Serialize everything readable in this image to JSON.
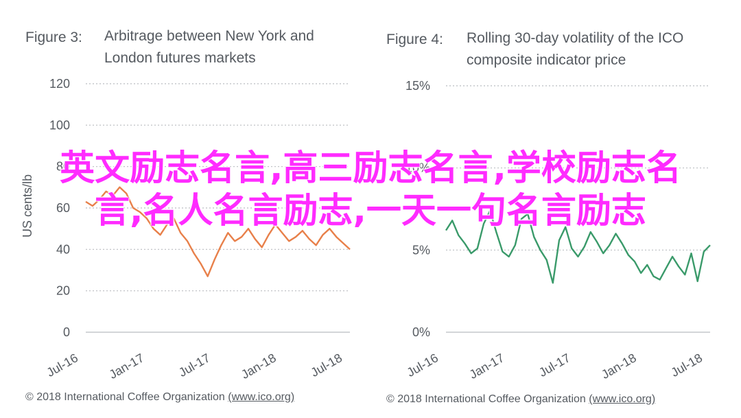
{
  "overlay_text": "英文励志名言,高三励志名言,学校励志名言,名人名言励志,一天一句名言励志",
  "chart_data": [
    {
      "type": "line",
      "figure_label": "Figure 3:",
      "title": "Arbitrage between New York and London futures markets",
      "ylabel": "US cents/lb",
      "ylim": [
        0,
        120
      ],
      "yticks": [
        "0",
        "20",
        "40",
        "60",
        "80",
        "100",
        "120"
      ],
      "xticks": [
        "Jul-16",
        "Jan-17",
        "Jul-17",
        "Jan-18",
        "Jul-18"
      ],
      "x_start": "2016-07",
      "x_end": "2018-07",
      "color": "#e8804a",
      "series": [
        {
          "values": [
            63,
            61,
            64,
            68,
            66,
            70,
            67,
            60,
            58,
            55,
            50,
            47,
            52,
            55,
            48,
            44,
            38,
            33,
            27,
            35,
            42,
            48,
            44,
            46,
            50,
            45,
            41,
            47,
            52,
            48,
            44,
            46,
            49,
            45,
            42,
            47,
            50,
            46,
            43,
            40
          ]
        }
      ],
      "footer": "© 2018 International Coffee Organization",
      "footer_link": "(www.ico.org)"
    },
    {
      "type": "line",
      "figure_label": "Figure 4:",
      "title": "Rolling 30-day volatility of the ICO composite indicator price",
      "ylim": [
        0,
        15
      ],
      "yticks": [
        "0%",
        "5%",
        "10%",
        "15%"
      ],
      "xticks": [
        "Jul-16",
        "Jan-17",
        "Jul-17",
        "Jan-18",
        "Jul-18"
      ],
      "x_start": "2016-07",
      "x_end": "2018-08",
      "color": "#3a9a6a",
      "series": [
        {
          "values": [
            6.2,
            6.8,
            5.9,
            5.4,
            4.8,
            5.1,
            6.6,
            7.4,
            6.1,
            4.9,
            4.6,
            5.3,
            6.9,
            7.2,
            5.8,
            5.0,
            4.4,
            3.0,
            5.6,
            6.4,
            5.1,
            4.6,
            5.2,
            6.1,
            5.5,
            4.8,
            5.3,
            6.0,
            5.4,
            4.7,
            4.3,
            3.6,
            4.1,
            3.4,
            3.2,
            3.9,
            4.6,
            4.0,
            3.5,
            4.8,
            3.1,
            4.9,
            5.3
          ]
        }
      ],
      "footer": "© 2018 International Coffee Organization",
      "footer_link": "(www.ico.org)"
    }
  ]
}
